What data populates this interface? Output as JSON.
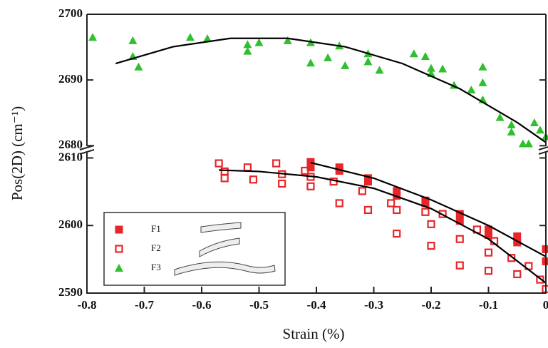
{
  "chart_data": [
    {
      "type": "scatter",
      "xlim": [
        -0.8,
        0
      ],
      "ylim": [
        2679.6,
        2700
      ],
      "yticks": [
        2680,
        2690,
        2700
      ],
      "series": [
        {
          "name": "F3",
          "color": "#2fbf2f",
          "marker": "triangle",
          "x": [
            -0.79,
            -0.72,
            -0.72,
            -0.71,
            -0.62,
            -0.59,
            -0.52,
            -0.52,
            -0.5,
            -0.45,
            -0.41,
            -0.41,
            -0.38,
            -0.36,
            -0.35,
            -0.31,
            -0.31,
            -0.29,
            -0.23,
            -0.21,
            -0.2,
            -0.2,
            -0.18,
            -0.16,
            -0.13,
            -0.11,
            -0.11,
            -0.11,
            -0.08,
            -0.06,
            -0.06,
            -0.04,
            -0.03,
            -0.02,
            -0.01,
            0
          ],
          "values": [
            2696.5,
            2696,
            2693.6,
            2692,
            2696.5,
            2696.3,
            2695.4,
            2694.4,
            2695.7,
            2696,
            2695.7,
            2692.6,
            2693.4,
            2695.2,
            2692.2,
            2694,
            2692.8,
            2691.5,
            2694,
            2693.6,
            2691.8,
            2691,
            2691.7,
            2689.2,
            2688.5,
            2689.6,
            2687,
            2692,
            2684.3,
            2683.2,
            2682.1,
            2680.3,
            2680.3,
            2683.5,
            2682.4,
            2681.4
          ]
        },
        {
          "color": "#000000",
          "marker": "line",
          "x": [
            -0.75,
            -0.65,
            -0.55,
            -0.45,
            -0.35,
            -0.25,
            -0.15,
            -0.05,
            0
          ],
          "values": [
            2692.5,
            2695.06,
            2696.34,
            2696.34,
            2695.06,
            2692.5,
            2688.66,
            2683.54,
            2680.5
          ]
        }
      ]
    },
    {
      "type": "scatter",
      "xlabel": "Strain (%)",
      "ylabel": "Pos(2D) (cm⁻¹)",
      "xlim": [
        -0.8,
        0
      ],
      "xticks": [
        -0.8,
        -0.7,
        -0.6,
        -0.5,
        -0.4,
        -0.3,
        -0.2,
        -0.1,
        0
      ],
      "ylim": [
        2590,
        2611
      ],
      "yticks": [
        2590,
        2600,
        2610
      ],
      "series": [
        {
          "name": "F1",
          "color": "#e8262a",
          "marker": "square",
          "x": [
            -0.41,
            -0.36,
            -0.31,
            -0.26,
            -0.21,
            -0.15,
            -0.1,
            -0.05,
            0,
            -0.41,
            -0.36,
            -0.31,
            -0.26,
            -0.21,
            -0.15,
            -0.1,
            -0.05,
            0
          ],
          "values": [
            2609.4,
            2608.6,
            2607,
            2605.1,
            2603.7,
            2601.7,
            2599.4,
            2598.4,
            2596.5,
            2608.6,
            2608.1,
            2606.5,
            2604.4,
            2603.3,
            2600.7,
            2598.6,
            2597.5,
            2594.7
          ]
        },
        {
          "name": "F2",
          "color": "#e8262a",
          "marker": "open-square",
          "x": [
            -0.57,
            -0.56,
            -0.56,
            -0.52,
            -0.51,
            -0.47,
            -0.46,
            -0.46,
            -0.42,
            -0.41,
            -0.41,
            -0.37,
            -0.36,
            -0.32,
            -0.31,
            -0.27,
            -0.26,
            -0.26,
            -0.21,
            -0.2,
            -0.2,
            -0.18,
            -0.15,
            -0.15,
            -0.12,
            -0.1,
            -0.1,
            -0.09,
            -0.06,
            -0.05,
            -0.03,
            -0.01,
            0
          ],
          "values": [
            2609.2,
            2608,
            2607,
            2608.6,
            2606.8,
            2609.2,
            2607.6,
            2606.2,
            2608.1,
            2607.2,
            2605.8,
            2606.5,
            2603.3,
            2605.1,
            2602.3,
            2603.3,
            2602.3,
            2598.8,
            2602,
            2600.2,
            2597,
            2601.7,
            2598,
            2594.1,
            2599.4,
            2596,
            2593.3,
            2597.7,
            2595.2,
            2592.8,
            2594,
            2592,
            2590.6
          ]
        },
        {
          "color": "#000000",
          "marker": "line",
          "x": [
            -0.41,
            -0.3,
            -0.2,
            -0.1,
            0
          ],
          "values": [
            2609.3,
            2607,
            2603.8,
            2600,
            2595.4
          ]
        },
        {
          "color": "#000000",
          "marker": "line",
          "x": [
            -0.57,
            -0.5,
            -0.4,
            -0.3,
            -0.2,
            -0.1,
            0
          ],
          "values": [
            2608.2,
            2608,
            2607.2,
            2605.5,
            2602.5,
            2598,
            2591.5
          ]
        }
      ]
    }
  ]
}
